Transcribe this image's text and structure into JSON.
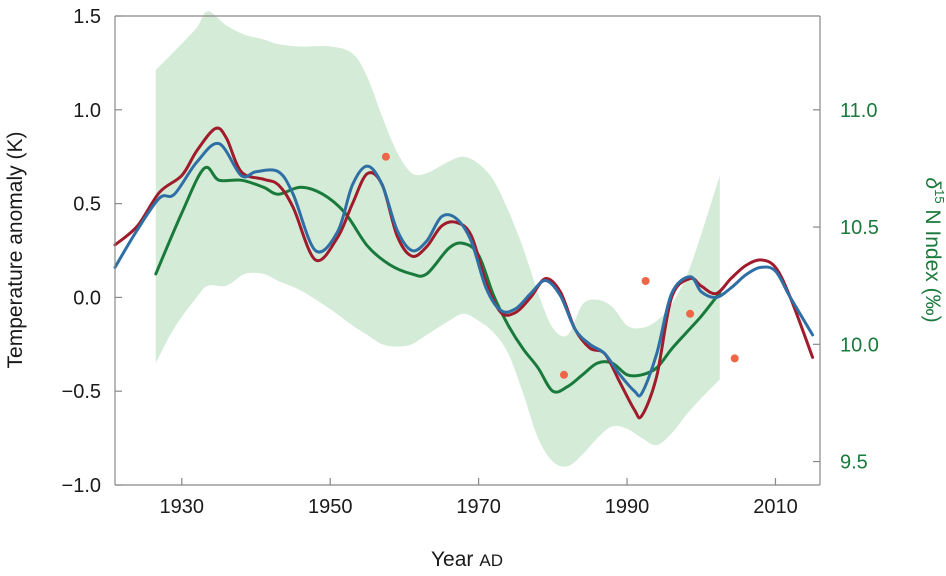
{
  "chart_data": {
    "type": "line",
    "x_axis": {
      "label_main": "Year",
      "label_suffix": "AD",
      "range": [
        1921,
        2016
      ],
      "ticks": [
        1930,
        1950,
        1970,
        1990,
        2010
      ],
      "tick_labels": [
        "1930",
        "1950",
        "1970",
        "1990",
        "2010"
      ]
    },
    "y_axis_left": {
      "label": "Temperature anomaly  (K)",
      "range": [
        -1.0,
        1.5
      ],
      "ticks": [
        -1.0,
        -0.5,
        0.0,
        0.5,
        1.0,
        1.5
      ],
      "tick_labels": [
        "−1.0",
        "−0.5",
        "0.0",
        "0.5",
        "1.0",
        "1.5"
      ]
    },
    "y_axis_right": {
      "label_delta": "δ",
      "label_superscript": "15",
      "label_rest": " N Index  (‰)",
      "range": [
        9.4,
        11.4
      ],
      "ticks": [
        9.5,
        10.0,
        10.5,
        11.0
      ],
      "tick_labels": [
        "9.5",
        "10.0",
        "10.5",
        "11.0"
      ]
    },
    "grid": false,
    "legend": "none",
    "colors": {
      "red": "#a01b2b",
      "blue": "#2f6fa6",
      "green": "#1a7a3c",
      "band": "#d4ecd7",
      "points": "#ee6645",
      "axis": "#888888"
    },
    "series": [
      {
        "axis": "left",
        "color_key": "red",
        "x": [
          1921,
          1924,
          1927,
          1930,
          1932,
          1934.5,
          1936,
          1938,
          1941,
          1943,
          1945,
          1948,
          1951,
          1953,
          1955,
          1957,
          1959,
          1961,
          1963,
          1965,
          1967,
          1969,
          1971,
          1973,
          1975,
          1977,
          1979,
          1981,
          1983,
          1985,
          1987,
          1989,
          1991,
          1992,
          1994,
          1996,
          1998.5,
          2000,
          2002,
          2004,
          2006,
          2008,
          2010,
          2012,
          2015
        ],
        "values": [
          0.28,
          0.38,
          0.56,
          0.65,
          0.78,
          0.9,
          0.85,
          0.67,
          0.63,
          0.6,
          0.48,
          0.2,
          0.32,
          0.5,
          0.66,
          0.6,
          0.33,
          0.22,
          0.27,
          0.38,
          0.4,
          0.33,
          0.08,
          -0.08,
          -0.08,
          0.0,
          0.1,
          0.03,
          -0.17,
          -0.27,
          -0.3,
          -0.45,
          -0.6,
          -0.63,
          -0.42,
          0.0,
          0.1,
          0.06,
          0.02,
          0.1,
          0.17,
          0.2,
          0.16,
          0.0,
          -0.32
        ]
      },
      {
        "axis": "left",
        "color_key": "blue",
        "x": [
          1921,
          1924,
          1927,
          1929,
          1932,
          1935,
          1938,
          1940,
          1943,
          1945,
          1948,
          1951,
          1953,
          1955,
          1957,
          1959,
          1961,
          1963,
          1965,
          1967,
          1969,
          1971,
          1973,
          1975,
          1977,
          1979,
          1981,
          1983,
          1985,
          1987,
          1989,
          1991,
          1992,
          1994,
          1996,
          1998.5,
          2000,
          2002,
          2004,
          2006,
          2008,
          2010,
          2012,
          2015
        ],
        "values": [
          0.16,
          0.36,
          0.53,
          0.55,
          0.72,
          0.82,
          0.65,
          0.67,
          0.67,
          0.55,
          0.25,
          0.35,
          0.6,
          0.7,
          0.6,
          0.36,
          0.25,
          0.3,
          0.43,
          0.42,
          0.3,
          0.05,
          -0.07,
          -0.06,
          0.02,
          0.09,
          0.01,
          -0.17,
          -0.25,
          -0.3,
          -0.41,
          -0.5,
          -0.51,
          -0.3,
          0.02,
          0.11,
          0.03,
          0.0,
          0.05,
          0.12,
          0.16,
          0.14,
          0.0,
          -0.2
        ]
      },
      {
        "axis": "right",
        "color_key": "green",
        "x": [
          1926.5,
          1930,
          1933,
          1935,
          1938,
          1941,
          1943,
          1946,
          1949,
          1952,
          1955,
          1958,
          1961,
          1963,
          1966,
          1968,
          1970,
          1972,
          1974,
          1976,
          1978,
          1980,
          1982,
          1984,
          1986,
          1988,
          1990,
          1992,
          1994,
          1996,
          1998,
          2000,
          2002.5
        ],
        "values": [
          10.3,
          10.56,
          10.75,
          10.7,
          10.7,
          10.67,
          10.64,
          10.67,
          10.64,
          10.56,
          10.42,
          10.34,
          10.3,
          10.3,
          10.41,
          10.43,
          10.38,
          10.21,
          10.08,
          9.98,
          9.9,
          9.8,
          9.82,
          9.87,
          9.92,
          9.92,
          9.87,
          9.87,
          9.9,
          9.98,
          10.05,
          10.12,
          10.22
        ]
      }
    ],
    "band": {
      "axis": "right",
      "x": [
        1926.5,
        1929,
        1932,
        1933.5,
        1936,
        1938.5,
        1941,
        1943,
        1946,
        1950,
        1953,
        1955,
        1957,
        1959,
        1961,
        1963,
        1966,
        1968,
        1970,
        1972,
        1974,
        1976,
        1978,
        1980,
        1982,
        1984,
        1986,
        1988,
        1990,
        1992,
        1994,
        1996,
        1998,
        2000,
        2002.5
      ],
      "upper": [
        11.17,
        11.25,
        11.35,
        11.42,
        11.36,
        11.32,
        11.3,
        11.28,
        11.27,
        11.27,
        11.24,
        11.14,
        10.97,
        10.82,
        10.73,
        10.73,
        10.78,
        10.8,
        10.77,
        10.7,
        10.57,
        10.41,
        10.22,
        10.07,
        10.04,
        10.17,
        10.19,
        10.16,
        10.08,
        10.07,
        10.1,
        10.17,
        10.29,
        10.47,
        10.72
      ],
      "lower": [
        9.92,
        10.07,
        10.2,
        10.25,
        10.25,
        10.3,
        10.3,
        10.27,
        10.23,
        10.15,
        10.08,
        10.04,
        10.0,
        9.99,
        10.0,
        10.04,
        10.1,
        10.13,
        10.1,
        10.05,
        9.96,
        9.79,
        9.6,
        9.5,
        9.48,
        9.53,
        9.6,
        9.65,
        9.64,
        9.6,
        9.57,
        9.62,
        9.7,
        9.77,
        9.85
      ]
    },
    "points": {
      "axis": "right",
      "color_key": "points",
      "x": [
        1957.5,
        1981.5,
        1992.5,
        1998.5,
        2004.5
      ],
      "values": [
        10.8,
        9.87,
        10.27,
        10.13,
        9.94
      ]
    }
  }
}
